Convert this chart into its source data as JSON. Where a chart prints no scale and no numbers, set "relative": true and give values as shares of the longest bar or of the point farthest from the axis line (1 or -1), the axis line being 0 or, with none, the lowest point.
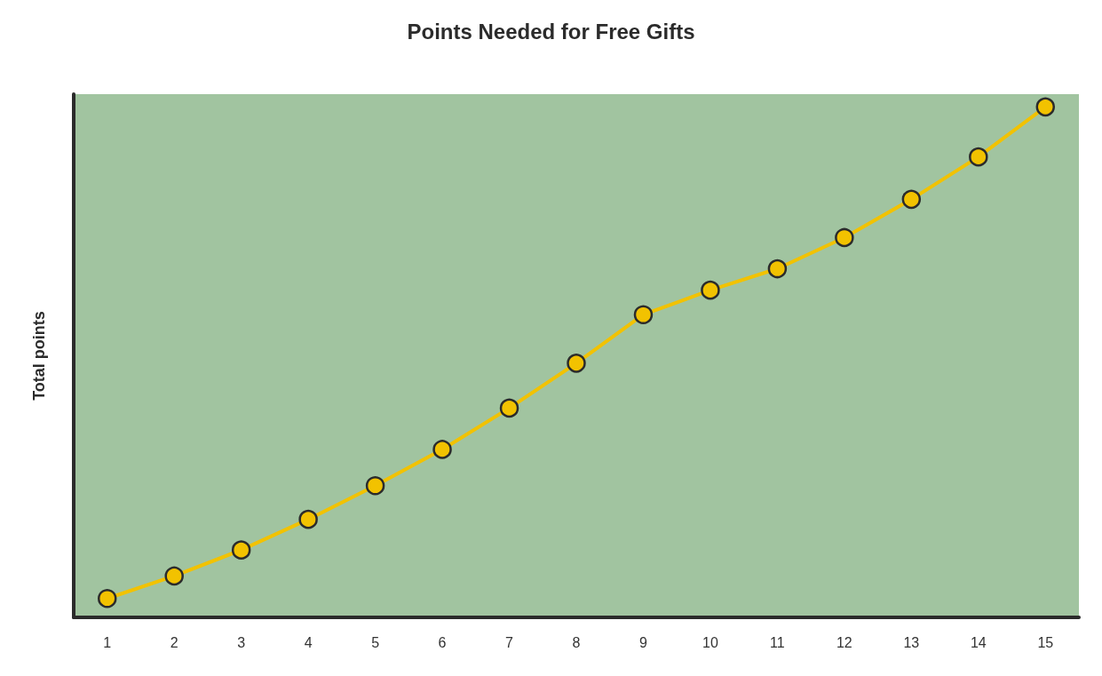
{
  "chart_data": {
    "type": "line",
    "title": "Points Needed for Free Gifts",
    "ylabel": "Total points",
    "relative": true,
    "marker": "circle",
    "line_style": "solid",
    "x": [
      1,
      2,
      3,
      4,
      5,
      6,
      7,
      8,
      9,
      10,
      11,
      12,
      13,
      14,
      15
    ],
    "xlim": [
      0.5,
      15.5
    ],
    "xticks": [
      1,
      2,
      3,
      4,
      5,
      6,
      7,
      8,
      9,
      10,
      11,
      12,
      13,
      14,
      15
    ],
    "series": [
      {
        "color": "#f2c200",
        "values": [
          0.037,
          0.081,
          0.132,
          0.192,
          0.258,
          0.329,
          0.41,
          0.498,
          0.593,
          0.641,
          0.683,
          0.744,
          0.819,
          0.902,
          1
        ]
      }
    ]
  }
}
